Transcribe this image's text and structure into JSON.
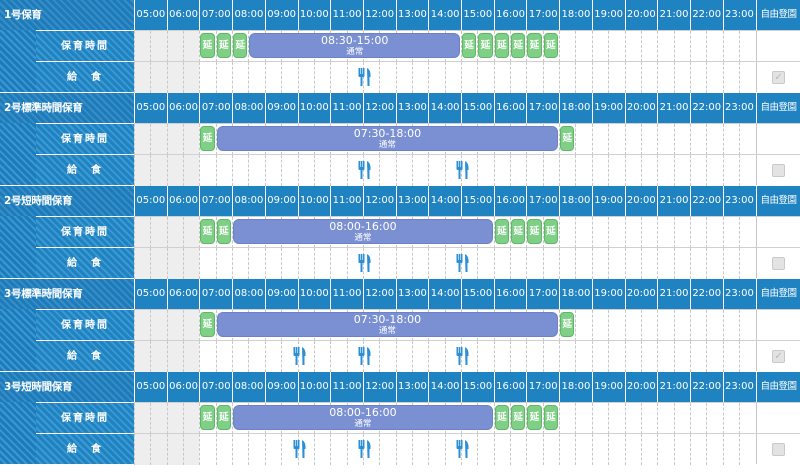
{
  "hours": [
    "05:00",
    "06:00",
    "07:00",
    "08:00",
    "09:00",
    "10:00",
    "11:00",
    "12:00",
    "13:00",
    "14:00",
    "15:00",
    "16:00",
    "17:00",
    "18:00",
    "19:00",
    "20:00",
    "21:00",
    "22:00",
    "23:00"
  ],
  "free_label": "自由登園",
  "row_labels": {
    "hoiku": "保育時間",
    "kyushoku": "給　食"
  },
  "extension_label": "延",
  "colors": {
    "header": "#1f82c1",
    "extension": "#7fcf86",
    "bar": "#7a90d2",
    "meal": "#2b8fd6"
  },
  "sections": [
    {
      "title": "1号保育",
      "time_text": "08:30-15:00",
      "status": "通常",
      "bar_start": 8.5,
      "bar_end": 15,
      "ext_slots": [
        7,
        7.5,
        8,
        15,
        15.5,
        16,
        16.5,
        17,
        17.5
      ],
      "meals": [
        12
      ],
      "free_checked": true
    },
    {
      "title": "2号標準時間保育",
      "time_text": "07:30-18:00",
      "status": "通常",
      "bar_start": 7.5,
      "bar_end": 18,
      "ext_slots": [
        7,
        18
      ],
      "meals": [
        12,
        15
      ],
      "free_checked": false
    },
    {
      "title": "2号短時間保育",
      "time_text": "08:00-16:00",
      "status": "通常",
      "bar_start": 8,
      "bar_end": 16,
      "ext_slots": [
        7,
        7.5,
        16,
        16.5,
        17,
        17.5
      ],
      "meals": [
        12,
        15
      ],
      "free_checked": false
    },
    {
      "title": "3号標準時間保育",
      "time_text": "07:30-18:00",
      "status": "通常",
      "bar_start": 7.5,
      "bar_end": 18,
      "ext_slots": [
        7,
        18
      ],
      "meals": [
        10,
        12,
        15
      ],
      "free_checked": true
    },
    {
      "title": "3号短時間保育",
      "time_text": "08:00-16:00",
      "status": "通常",
      "bar_start": 8,
      "bar_end": 16,
      "ext_slots": [
        7,
        7.5,
        16,
        16.5,
        17,
        17.5
      ],
      "meals": [
        10,
        12,
        15
      ],
      "free_checked": false
    }
  ]
}
